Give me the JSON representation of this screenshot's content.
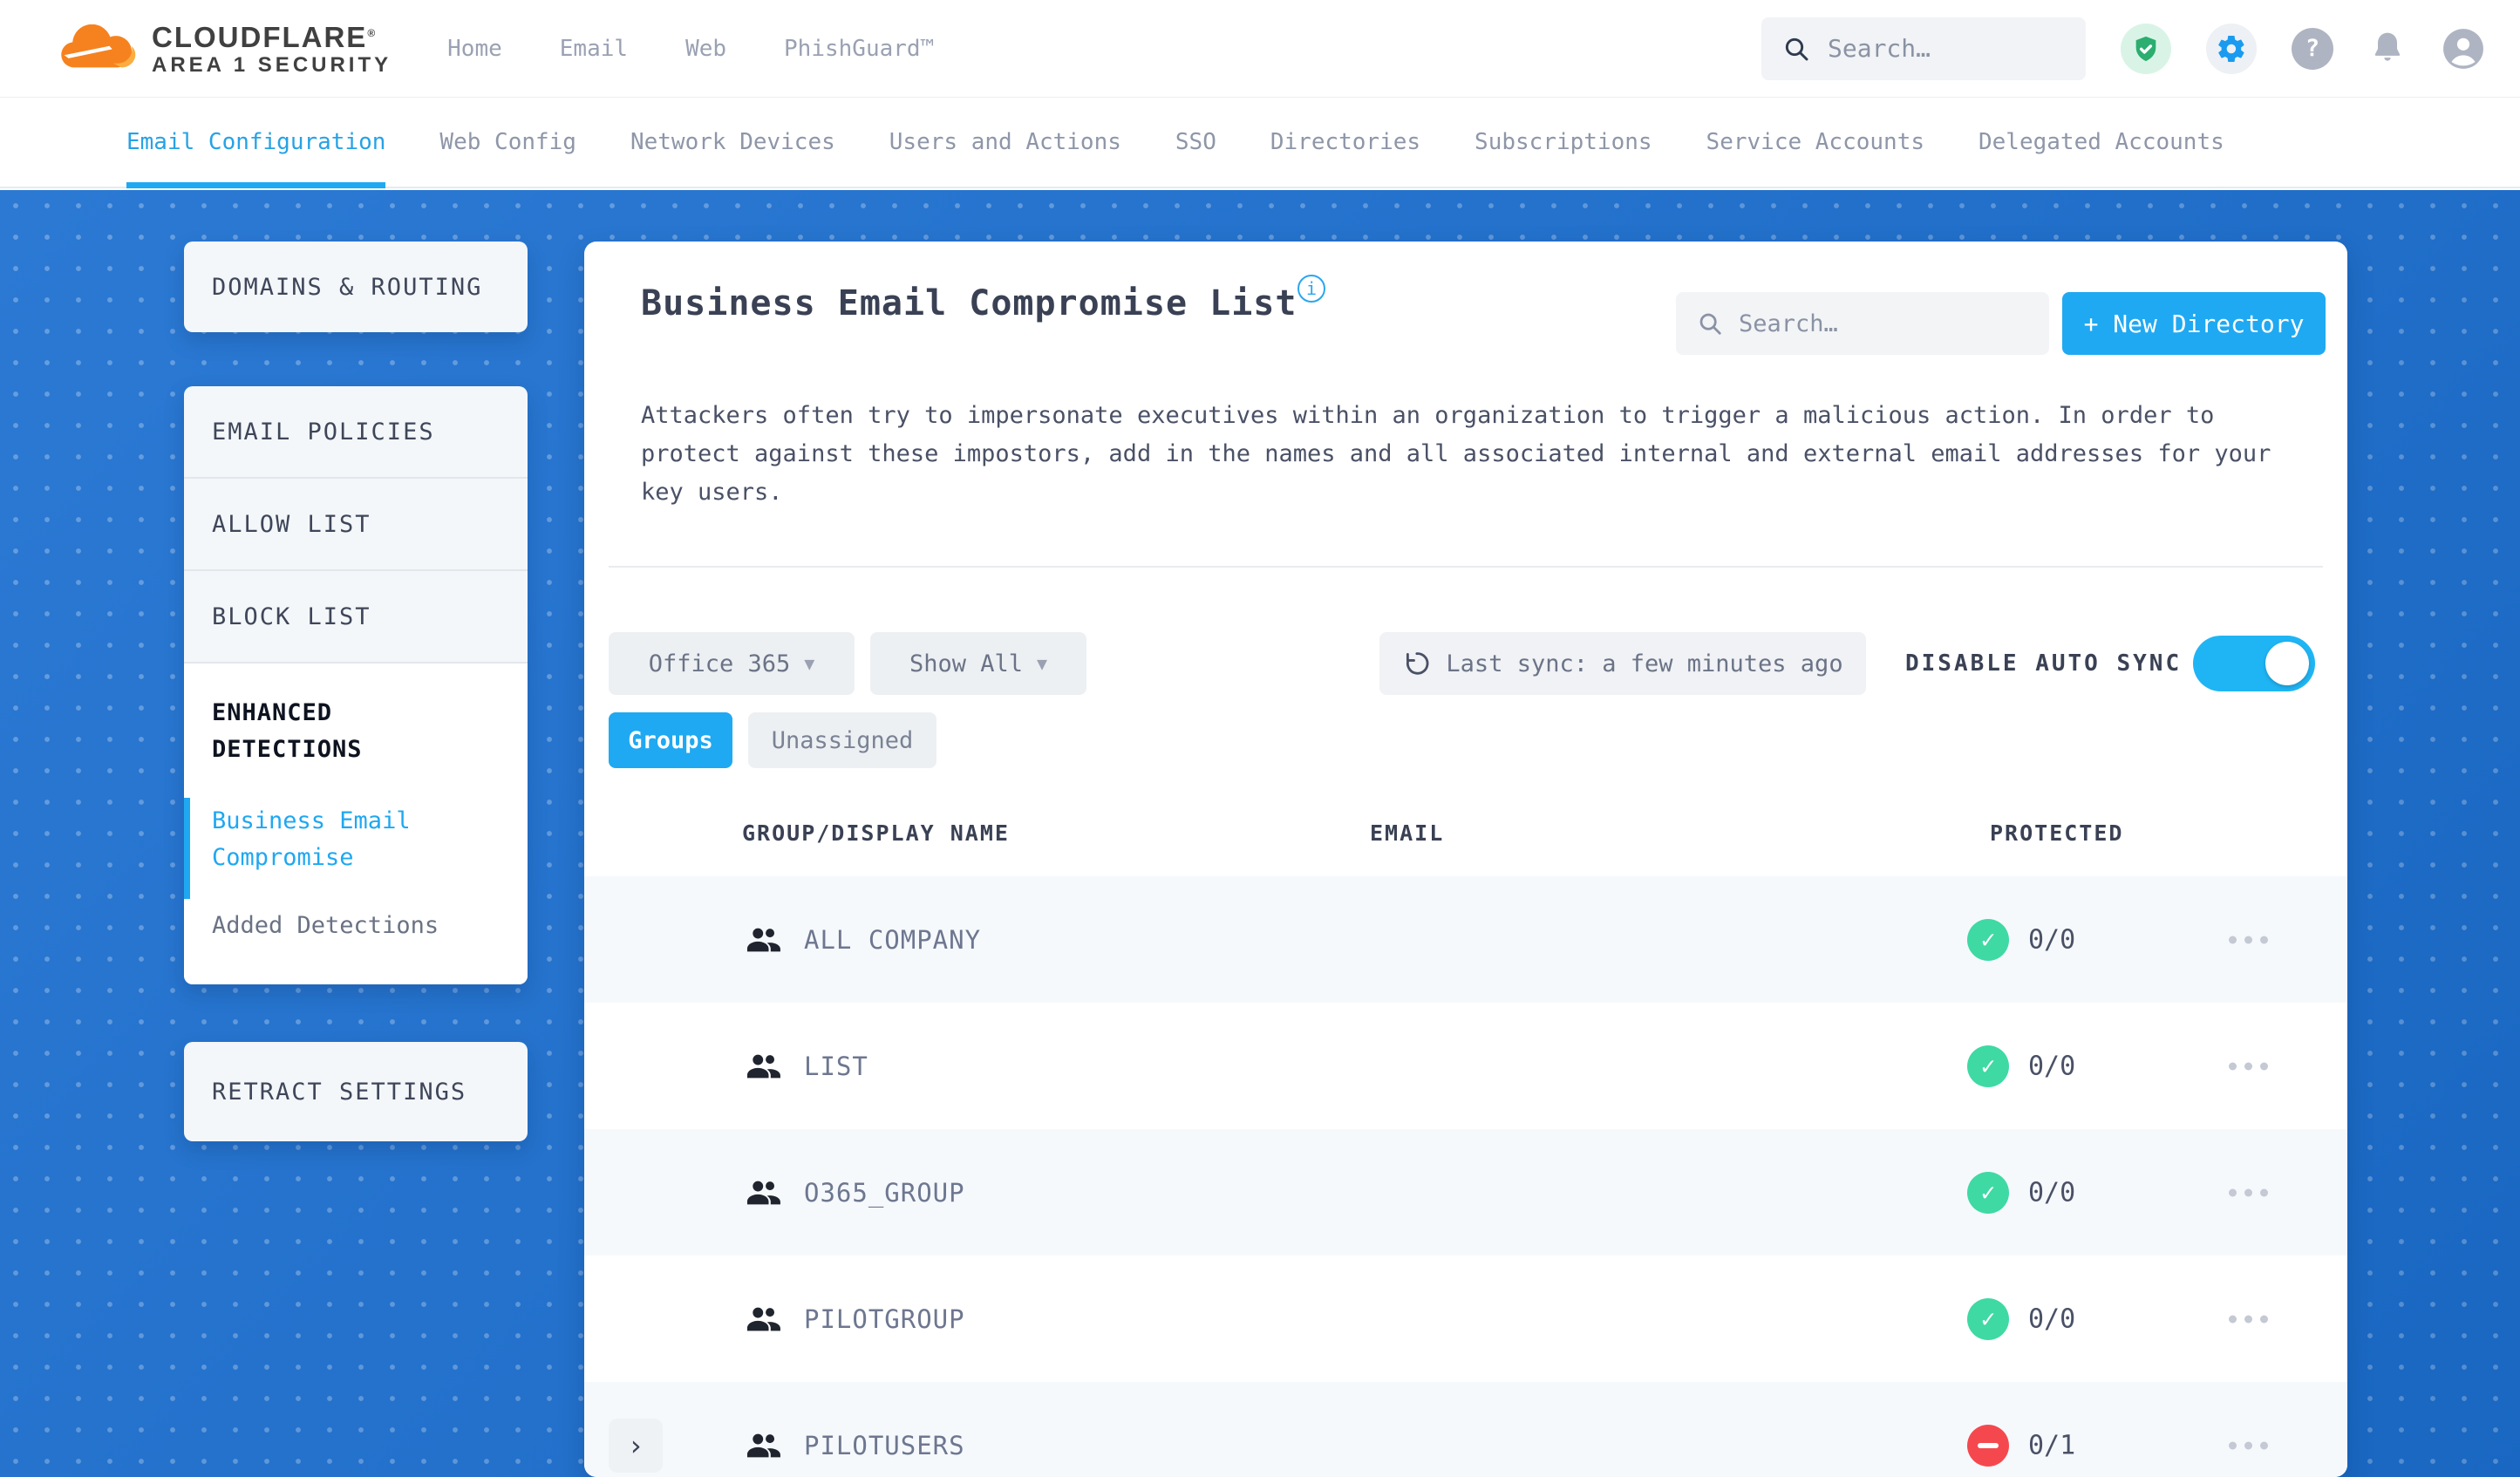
{
  "brand": {
    "line1": "CLOUDFLARE",
    "line2": "AREA 1 SECURITY"
  },
  "top_nav": [
    "Home",
    "Email",
    "Web",
    "PhishGuard™"
  ],
  "header": {
    "search_placeholder": "Search…",
    "icons": [
      "shield-check",
      "gear",
      "help",
      "bell",
      "user"
    ]
  },
  "tabs": {
    "items": [
      "Email Configuration",
      "Web Config",
      "Network Devices",
      "Users and Actions",
      "SSO",
      "Directories",
      "Subscriptions",
      "Service Accounts",
      "Delegated Accounts"
    ],
    "active": "Email Configuration"
  },
  "sidebar": {
    "domains_routing": "DOMAINS & ROUTING",
    "email_policies": "EMAIL POLICIES",
    "allow_list": "ALLOW LIST",
    "block_list": "BLOCK LIST",
    "enhanced_detections": "ENHANCED DETECTIONS",
    "business_email_compromise": "Business Email Compromise",
    "added_detections": "Added Detections",
    "retract_settings": "RETRACT SETTINGS"
  },
  "content": {
    "title": "Business Email Compromise List",
    "search_placeholder": "Search…",
    "new_directory": "+ New Directory",
    "description": "Attackers often try to impersonate executives within an organization to trigger a malicious action. In order to protect against these impostors, add in the names and all associated internal and external email addresses for your key users.",
    "connector_filter": "Office 365",
    "show_filter": "Show All",
    "last_sync": "Last sync: a few minutes ago",
    "auto_sync_label": "DISABLE AUTO SYNC",
    "auto_sync_enabled": true,
    "view_tabs": {
      "groups": "Groups",
      "unassigned": "Unassigned",
      "active": "Groups"
    },
    "table": {
      "headers": {
        "name": "GROUP/DISPLAY NAME",
        "email": "EMAIL",
        "protected": "PROTECTED"
      },
      "rows": [
        {
          "name": "ALL COMPANY",
          "email": "",
          "protected": "0/0",
          "status": "protected",
          "expandable": false
        },
        {
          "name": "LIST",
          "email": "",
          "protected": "0/0",
          "status": "protected",
          "expandable": false
        },
        {
          "name": "O365_GROUP",
          "email": "",
          "protected": "0/0",
          "status": "protected",
          "expandable": false
        },
        {
          "name": "PILOTGROUP",
          "email": "",
          "protected": "0/0",
          "status": "protected",
          "expandable": false
        },
        {
          "name": "PILOTUSERS",
          "email": "",
          "protected": "0/1",
          "status": "unprotected",
          "expandable": true
        }
      ]
    }
  },
  "colors": {
    "accent_blue": "#1FA9F2",
    "page_blue": "#1B6FD0",
    "success_green": "#3FD9A4",
    "danger_red": "#F5484E",
    "logo_orange": "#F6821F"
  }
}
